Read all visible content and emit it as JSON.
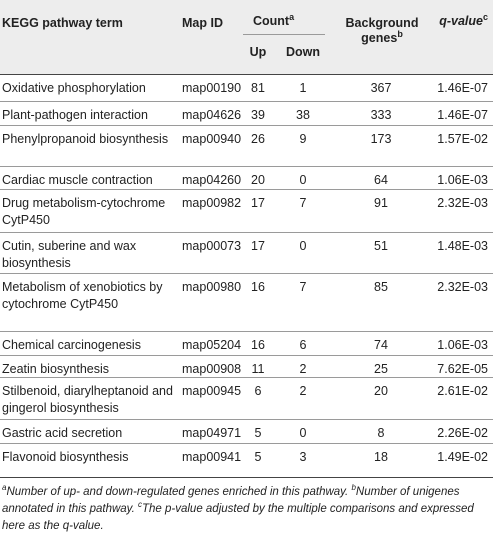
{
  "headers": {
    "term": "KEGG pathway term",
    "map_id": "Map ID",
    "count": "Count",
    "count_sup": "a",
    "up": "Up",
    "down": "Down",
    "background": "Background genes",
    "background_sup": "b",
    "qvalue": "q-value",
    "qvalue_sup": "c"
  },
  "rows": [
    {
      "term": "Oxidative phosphorylation",
      "map_id": "map00190",
      "up": "81",
      "down": "1",
      "background": "367",
      "qvalue": "1.46E-07"
    },
    {
      "term": "Plant-pathogen interaction",
      "map_id": "map04626",
      "up": "39",
      "down": "38",
      "background": "333",
      "qvalue": "1.46E-07"
    },
    {
      "term": "Phenylpropanoid biosynthesis",
      "map_id": "map00940",
      "up": "26",
      "down": "9",
      "background": "173",
      "qvalue": "1.57E-02"
    },
    {
      "term": "Cardiac muscle contraction",
      "map_id": "map04260",
      "up": "20",
      "down": "0",
      "background": "64",
      "qvalue": "1.06E-03"
    },
    {
      "term": "Drug metabolism-cytochrome CytP450",
      "map_id": "map00982",
      "up": "17",
      "down": "7",
      "background": "91",
      "qvalue": "2.32E-03"
    },
    {
      "term": "Cutin, suberine and wax biosynthesis",
      "map_id": "map00073",
      "up": "17",
      "down": "0",
      "background": "51",
      "qvalue": "1.48E-03"
    },
    {
      "term": "Metabolism of xenobiotics by cytochrome CytP450",
      "map_id": "map00980",
      "up": "16",
      "down": "7",
      "background": "85",
      "qvalue": "2.32E-03"
    },
    {
      "term": "Chemical carcinogenesis",
      "map_id": "map05204",
      "up": "16",
      "down": "6",
      "background": "74",
      "qvalue": "1.06E-03"
    },
    {
      "term": "Zeatin biosynthesis",
      "map_id": "map00908",
      "up": "11",
      "down": "2",
      "background": "25",
      "qvalue": "7.62E-05"
    },
    {
      "term": "Stilbenoid, diarylheptanoid and gingerol biosynthesis",
      "map_id": "map00945",
      "up": "6",
      "down": "2",
      "background": "20",
      "qvalue": "2.61E-02"
    },
    {
      "term": "Gastric acid secretion",
      "map_id": "map04971",
      "up": "5",
      "down": "0",
      "background": "8",
      "qvalue": "2.26E-02"
    },
    {
      "term": "Flavonoid biosynthesis",
      "map_id": "map00941",
      "up": "5",
      "down": "3",
      "background": "18",
      "qvalue": "1.49E-02"
    }
  ],
  "footnotes": {
    "a_mark": "a",
    "a_text": "Number of up- and down-regulated genes enriched in this pathway.",
    "b_mark": "b",
    "b_text": "Number of unigenes annotated in this pathway.",
    "c_mark": "c",
    "c_text": "The p-value adjusted by the multiple comparisons and expressed here as the q-value."
  }
}
